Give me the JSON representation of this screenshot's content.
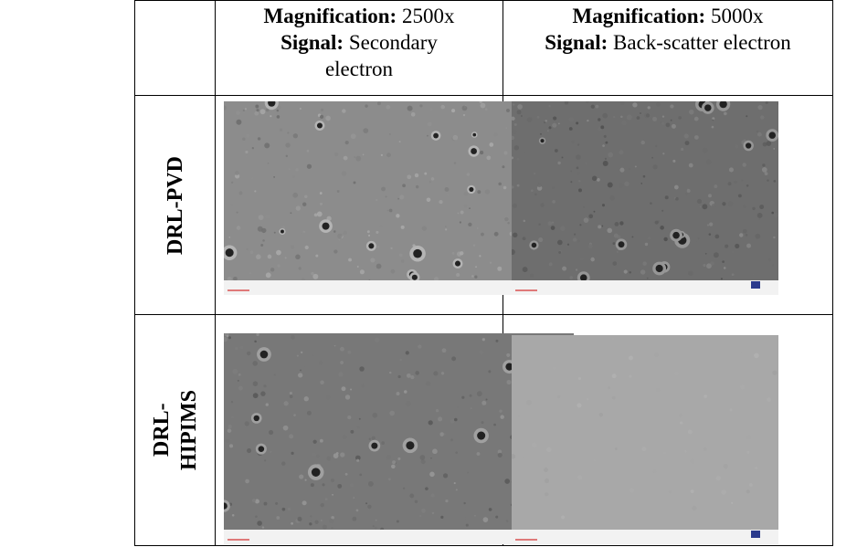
{
  "table": {
    "columns": [
      {
        "magnification_label": "Magnification:",
        "magnification": "2500x",
        "signal_label": "Signal:",
        "signal": "Secondary electron"
      },
      {
        "magnification_label": "Magnification:",
        "magnification": "5000x",
        "signal_label": "Signal:",
        "signal": "Back-scatter electron"
      }
    ],
    "rows": [
      {
        "label": "DRL-PVD"
      },
      {
        "label": "DRL-HIPIMS"
      }
    ]
  }
}
